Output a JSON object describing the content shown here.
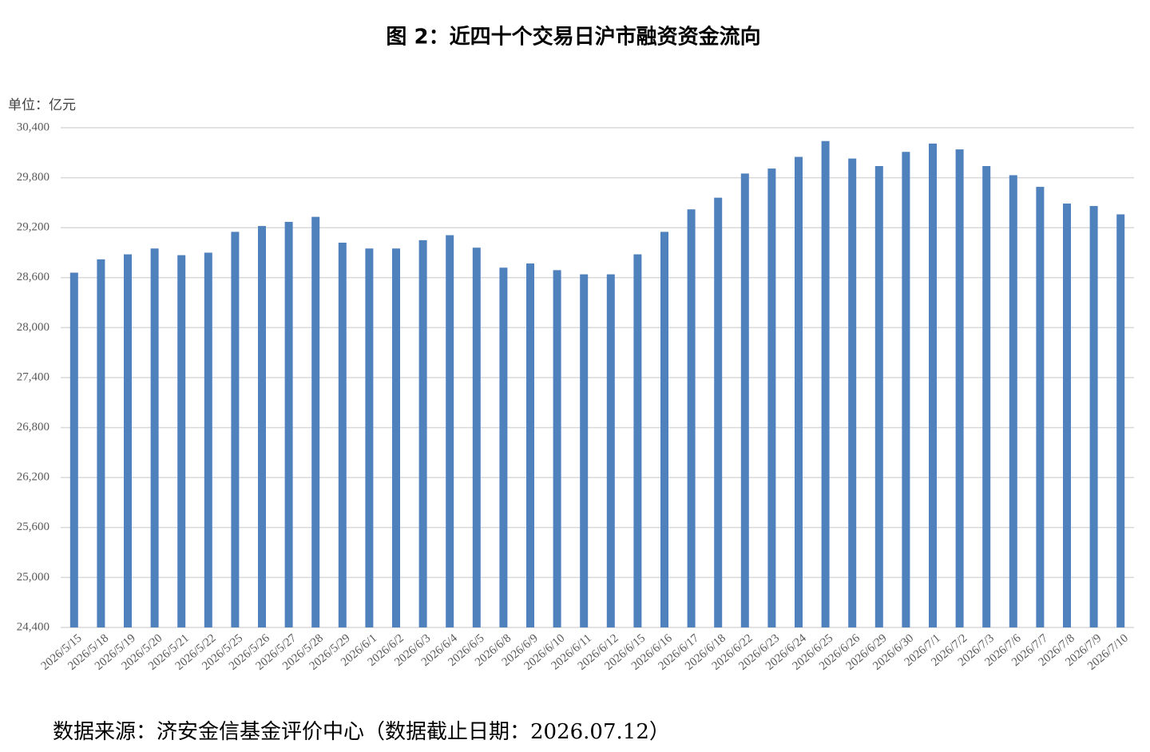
{
  "chart_data": {
    "type": "bar",
    "title": "图 2：近四十个交易日沪市融资资金流向",
    "unit": "单位：亿元",
    "source": "数据来源：济安金信基金评价中心（数据截止日期：2026.07.12）",
    "categories": [
      "2026/5/15",
      "2026/5/18",
      "2026/5/19",
      "2026/5/20",
      "2026/5/21",
      "2026/5/22",
      "2026/5/25",
      "2026/5/26",
      "2026/5/27",
      "2026/5/28",
      "2026/5/29",
      "2026/6/1",
      "2026/6/2",
      "2026/6/3",
      "2026/6/4",
      "2026/6/5",
      "2026/6/8",
      "2026/6/9",
      "2026/6/10",
      "2026/6/11",
      "2026/6/12",
      "2026/6/15",
      "2026/6/16",
      "2026/6/17",
      "2026/6/18",
      "2026/6/22",
      "2026/6/23",
      "2026/6/24",
      "2026/6/25",
      "2026/6/26",
      "2026/6/29",
      "2026/6/30",
      "2026/7/1",
      "2026/7/2",
      "2026/7/3",
      "2026/7/6",
      "2026/7/7",
      "2026/7/8",
      "2026/7/9",
      "2026/7/10"
    ],
    "values": [
      28660,
      28820,
      28880,
      28950,
      28870,
      28900,
      29150,
      29220,
      29270,
      29330,
      29020,
      28950,
      28950,
      29050,
      29110,
      28960,
      28720,
      28770,
      28690,
      28640,
      28640,
      28880,
      29150,
      29420,
      29560,
      29850,
      29910,
      30050,
      30240,
      30030,
      29940,
      30110,
      30210,
      30140,
      29940,
      29830,
      29690,
      29490,
      29460,
      29360
    ],
    "color": "#4f81bd",
    "ylim": [
      24400,
      30400
    ],
    "yticks": [
      {
        "value": 24400,
        "label": "24,400"
      },
      {
        "value": 25000,
        "label": "25,000"
      },
      {
        "value": 25600,
        "label": "25,600"
      },
      {
        "value": 26200,
        "label": "26,200"
      },
      {
        "value": 26800,
        "label": "26,800"
      },
      {
        "value": 27400,
        "label": "27,400"
      },
      {
        "value": 28000,
        "label": "28,000"
      },
      {
        "value": 28600,
        "label": "28,600"
      },
      {
        "value": 29200,
        "label": "29,200"
      },
      {
        "value": 29800,
        "label": "29,800"
      },
      {
        "value": 30400,
        "label": "30,400"
      }
    ],
    "grid": true
  }
}
